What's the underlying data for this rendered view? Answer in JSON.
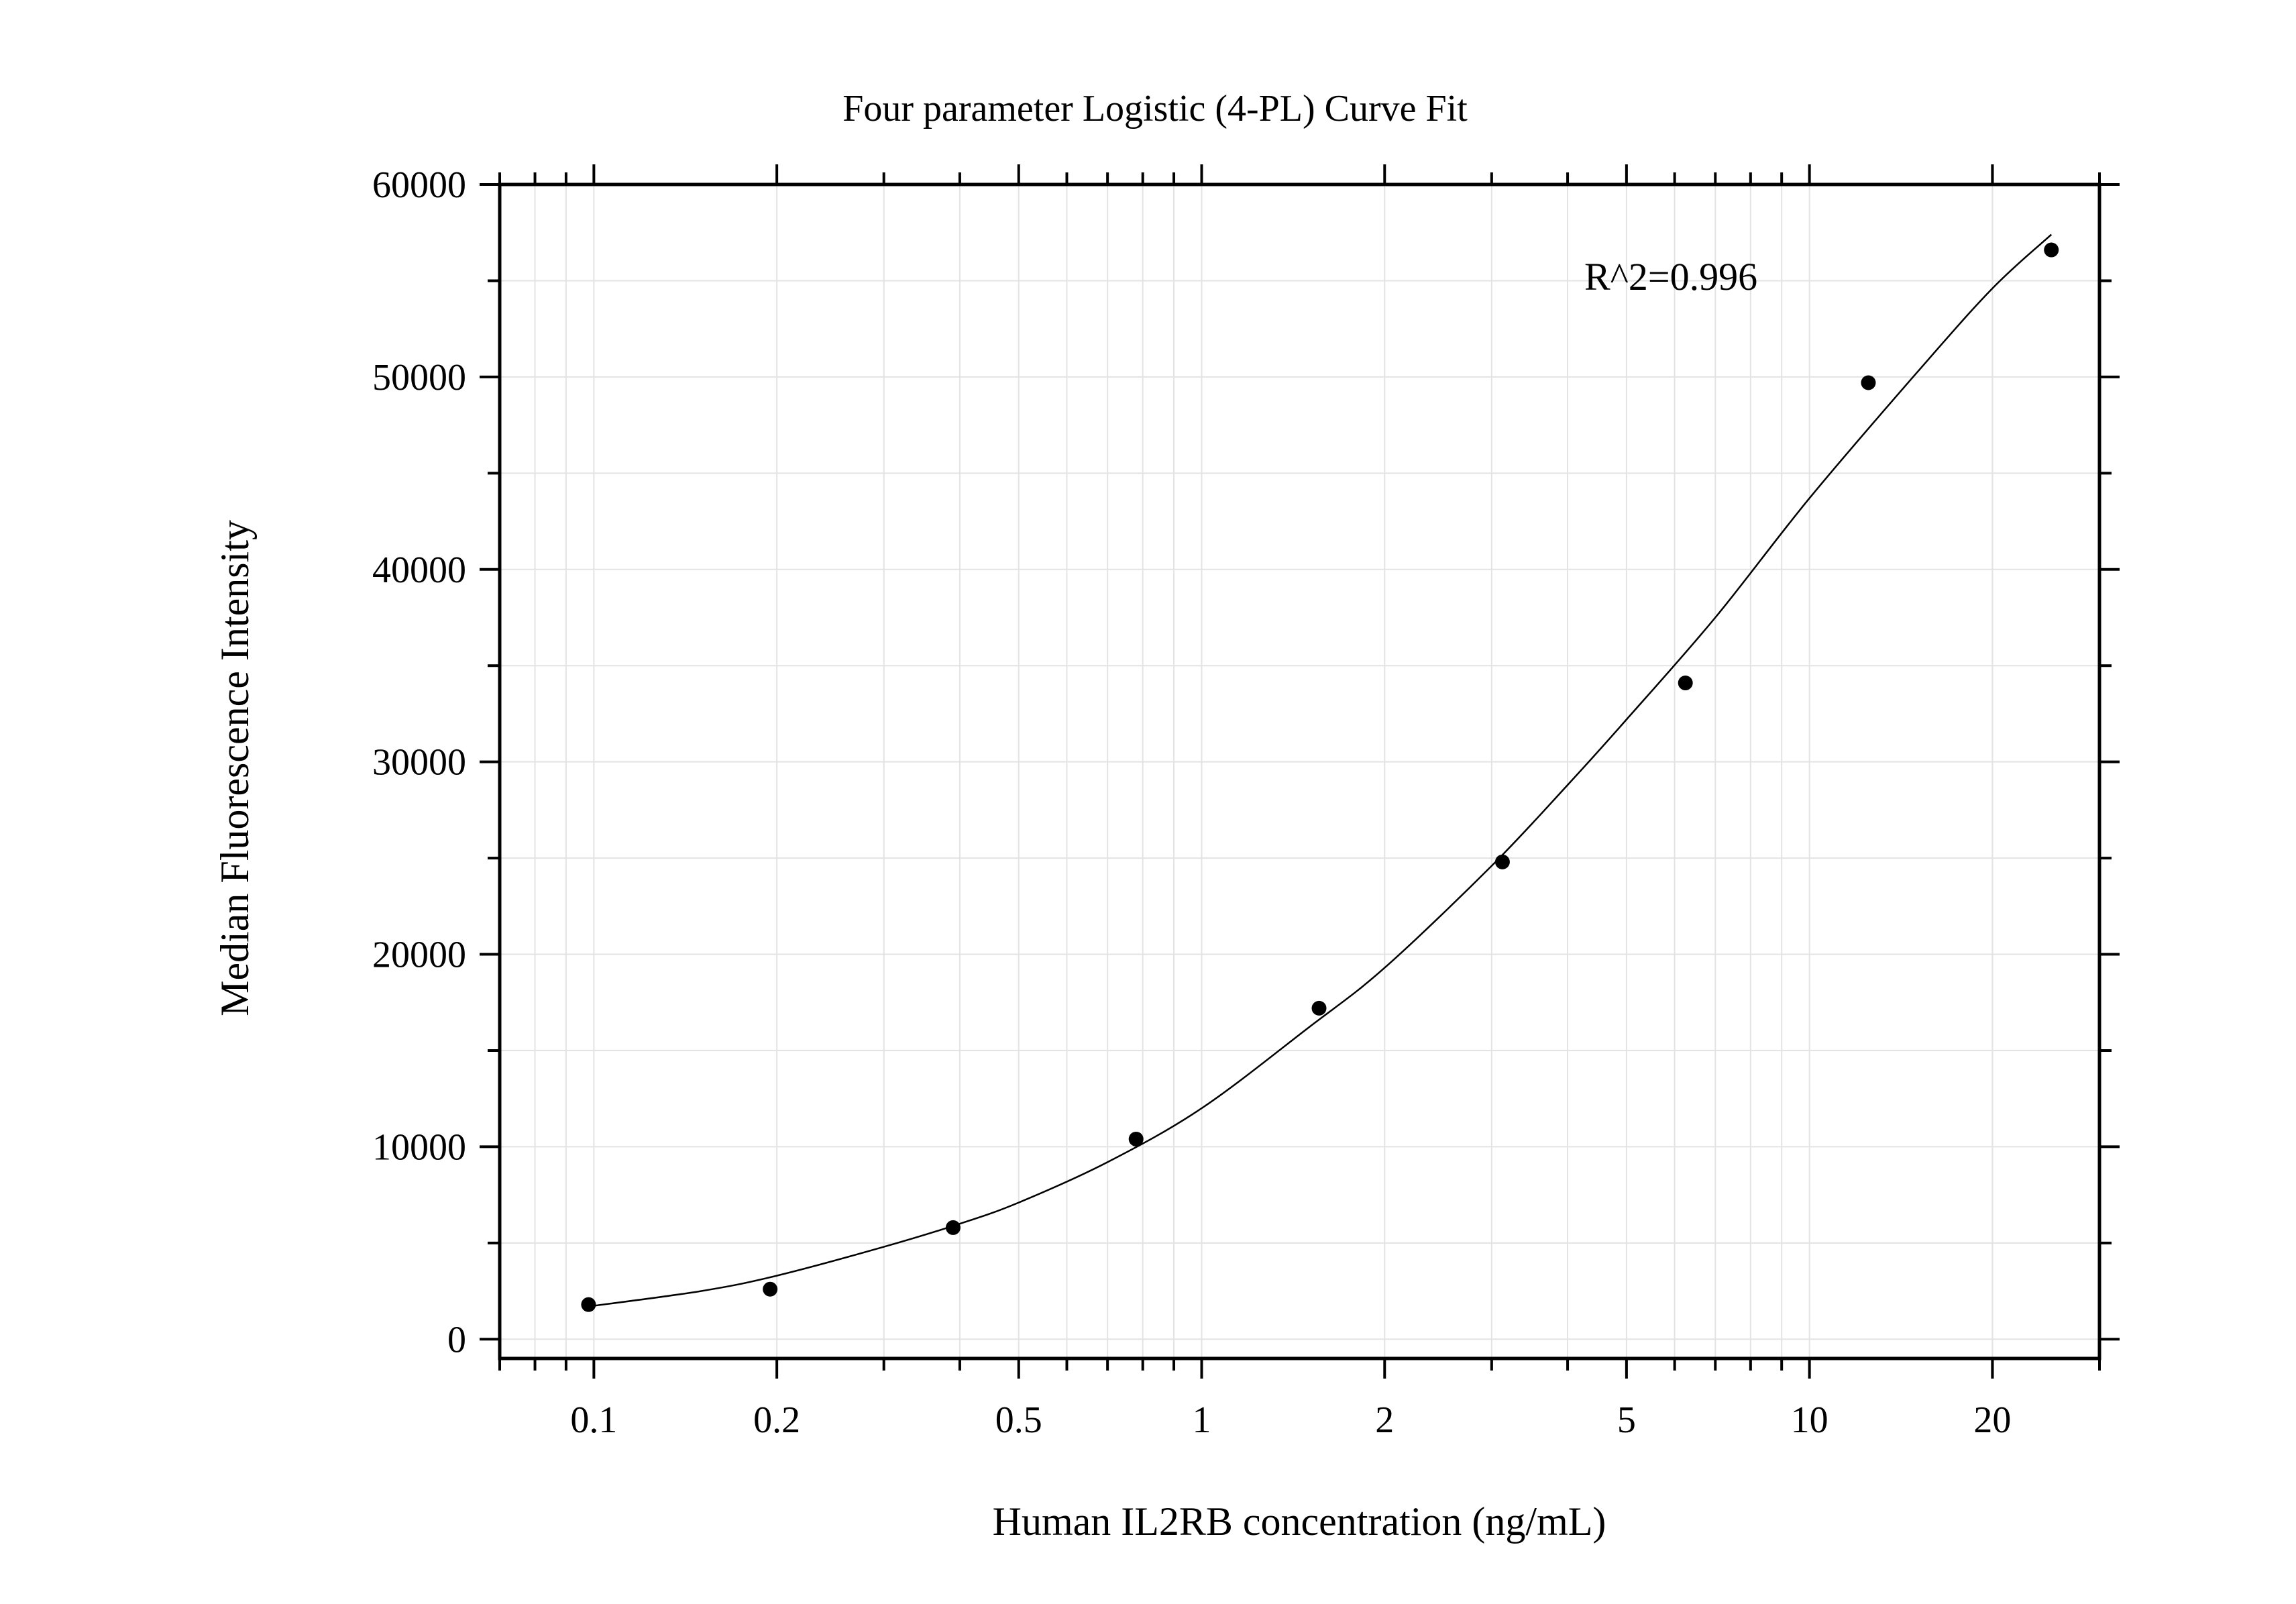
{
  "chart_data": {
    "type": "scatter",
    "title": "Four parameter Logistic (4-PL) Curve Fit",
    "xlabel": "Human IL2RB concentration (ng/mL)",
    "ylabel": "Median Fluorescence Intensity",
    "x_scale": "log",
    "xlim": [
      0.07,
      30
    ],
    "ylim": [
      -1000,
      60000
    ],
    "grid": true,
    "legend": "none",
    "x_ticks": [
      {
        "value": 0.1,
        "label": "0.1"
      },
      {
        "value": 0.2,
        "label": "0.2"
      },
      {
        "value": 0.5,
        "label": "0.5"
      },
      {
        "value": 1,
        "label": "1"
      },
      {
        "value": 2,
        "label": "2"
      },
      {
        "value": 5,
        "label": "5"
      },
      {
        "value": 10,
        "label": "10"
      },
      {
        "value": 20,
        "label": "20"
      }
    ],
    "y_ticks": [
      {
        "value": 0,
        "label": "0"
      },
      {
        "value": 10000,
        "label": "10000"
      },
      {
        "value": 20000,
        "label": "20000"
      },
      {
        "value": 30000,
        "label": "30000"
      },
      {
        "value": 40000,
        "label": "40000"
      },
      {
        "value": 50000,
        "label": "50000"
      },
      {
        "value": 60000,
        "label": "60000"
      }
    ],
    "points": {
      "x": [
        0.098,
        0.195,
        0.39,
        0.78,
        1.56,
        3.125,
        6.25,
        12.5,
        25
      ],
      "y": [
        1800,
        2600,
        5800,
        10400,
        17200,
        24800,
        34100,
        49700,
        56600
      ]
    },
    "fit_curve": {
      "x": [
        0.098,
        0.15,
        0.2,
        0.3,
        0.4,
        0.5,
        0.7,
        1,
        1.5,
        2,
        3,
        4,
        5,
        7,
        10,
        15,
        20,
        25
      ],
      "y": [
        1700,
        2500,
        3300,
        4800,
        6000,
        7100,
        9200,
        12000,
        16200,
        19300,
        24600,
        28800,
        32200,
        37500,
        43700,
        50200,
        54600,
        57400
      ]
    },
    "annotation": "R^2=0.996",
    "colors": {
      "points": "#000000",
      "curve": "#000000",
      "grid": "#e3e3e3",
      "axis": "#000000"
    }
  }
}
